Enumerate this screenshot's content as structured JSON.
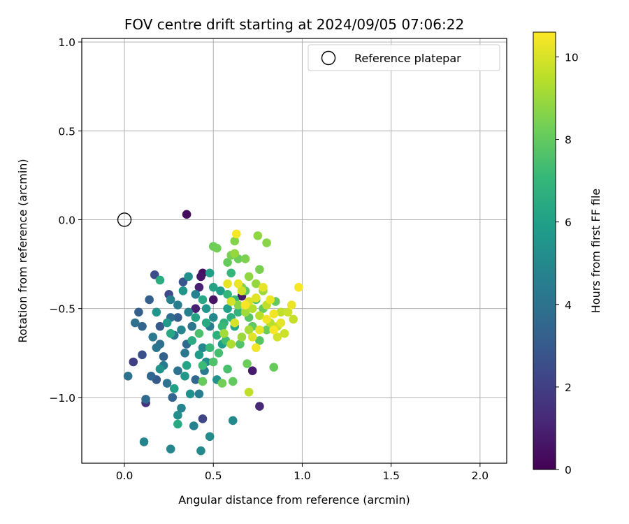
{
  "chart_data": {
    "type": "scatter",
    "title": "FOV centre drift starting at 2024/09/05 07:06:22",
    "xlabel": "Angular distance from reference (arcmin)",
    "ylabel": "Rotation from reference (arcmin)",
    "xlim": [
      -0.24,
      2.15
    ],
    "ylim": [
      -1.37,
      1.02
    ],
    "xticks": [
      0.0,
      0.5,
      1.0,
      1.5,
      2.0
    ],
    "xtick_labels": [
      "0.0",
      "0.5",
      "1.0",
      "1.5",
      "2.0"
    ],
    "yticks": [
      1.0,
      0.5,
      0.0,
      -0.5,
      -1.0
    ],
    "ytick_labels": [
      "1.0",
      "0.5",
      "0.0",
      "−0.5",
      "−1.0"
    ],
    "grid": true,
    "legend": {
      "placement": "top-right",
      "entries": [
        {
          "label": "Reference platepar",
          "marker": "open-circle"
        }
      ]
    },
    "reference_point": {
      "x": 0.0,
      "y": 0.0
    },
    "colorbar": {
      "label": "Hours from first FF file",
      "range": [
        0,
        10.6
      ],
      "ticks": [
        0,
        2,
        4,
        6,
        8,
        10
      ],
      "tick_labels": [
        "0",
        "2",
        "4",
        "6",
        "8",
        "10"
      ],
      "colormap": "viridis"
    },
    "series": [
      {
        "points": [
          [
            0.35,
            0.03,
            0.3
          ],
          [
            0.44,
            -0.3,
            0.4
          ],
          [
            0.43,
            -0.32,
            0.6
          ],
          [
            0.5,
            -0.45,
            0.5
          ],
          [
            0.72,
            -0.85,
            0.8
          ],
          [
            0.76,
            -1.05,
            1.2
          ],
          [
            0.4,
            -0.5,
            0.9
          ],
          [
            0.66,
            -0.43,
            0.7
          ],
          [
            0.42,
            -0.38,
            1.0
          ],
          [
            0.12,
            -1.03,
            1.5
          ],
          [
            0.05,
            -0.8,
            2.0
          ],
          [
            0.17,
            -0.31,
            2.5
          ],
          [
            0.44,
            -1.12,
            2.2
          ],
          [
            0.33,
            -0.35,
            2.8
          ],
          [
            0.25,
            -0.42,
            2.4
          ],
          [
            0.1,
            -0.76,
            2.6
          ],
          [
            0.2,
            -0.6,
            3.0
          ],
          [
            0.14,
            -0.45,
            3.2
          ],
          [
            0.3,
            -0.55,
            3.1
          ],
          [
            0.18,
            -0.9,
            3.0
          ],
          [
            0.27,
            -1.0,
            3.4
          ],
          [
            0.22,
            -0.77,
            3.3
          ],
          [
            0.35,
            -0.7,
            3.6
          ],
          [
            0.4,
            -0.9,
            3.5
          ],
          [
            0.08,
            -0.52,
            3.2
          ],
          [
            0.1,
            -0.6,
            3.4
          ],
          [
            0.15,
            -0.88,
            3.5
          ],
          [
            0.12,
            -1.01,
            3.6
          ],
          [
            0.2,
            -0.7,
            3.8
          ],
          [
            0.26,
            -0.55,
            3.7
          ],
          [
            0.3,
            -0.85,
            4.0
          ],
          [
            0.34,
            -0.75,
            4.2
          ],
          [
            0.38,
            -0.6,
            4.1
          ],
          [
            0.45,
            -0.85,
            4.3
          ],
          [
            0.48,
            -0.6,
            4.4
          ],
          [
            0.24,
            -0.92,
            4.0
          ],
          [
            0.3,
            -0.48,
            4.5
          ],
          [
            0.36,
            -0.52,
            4.6
          ],
          [
            0.28,
            -0.65,
            4.2
          ],
          [
            0.22,
            -0.82,
            4.4
          ],
          [
            0.18,
            -0.72,
            4.1
          ],
          [
            0.42,
            -0.98,
            4.5
          ],
          [
            0.02,
            -0.88,
            4.0
          ],
          [
            0.06,
            -0.58,
            3.9
          ],
          [
            0.16,
            -0.66,
            4.3
          ],
          [
            0.26,
            -0.45,
            4.6
          ],
          [
            0.32,
            -0.62,
            4.8
          ],
          [
            0.4,
            -0.42,
            4.7
          ],
          [
            0.44,
            -0.72,
            4.9
          ],
          [
            0.5,
            -0.55,
            5.0
          ],
          [
            0.11,
            -1.25,
            4.8
          ],
          [
            0.26,
            -1.29,
            4.9
          ],
          [
            0.43,
            -1.3,
            5.0
          ],
          [
            0.48,
            -1.22,
            5.1
          ],
          [
            0.61,
            -1.13,
            5.0
          ],
          [
            0.39,
            -1.16,
            4.7
          ],
          [
            0.32,
            -1.06,
            4.8
          ],
          [
            0.3,
            -1.1,
            5.2
          ],
          [
            0.37,
            -0.98,
            5.3
          ],
          [
            0.46,
            -0.8,
            5.2
          ],
          [
            0.52,
            -0.9,
            5.4
          ],
          [
            0.46,
            -0.5,
            5.5
          ],
          [
            0.36,
            -0.32,
            5.3
          ],
          [
            0.33,
            -0.4,
            5.6
          ],
          [
            0.2,
            -0.84,
            5.4
          ],
          [
            0.18,
            -0.52,
            5.5
          ],
          [
            0.24,
            -0.58,
            5.7
          ],
          [
            0.34,
            -0.88,
            5.6
          ],
          [
            0.42,
            -0.76,
            5.8
          ],
          [
            0.55,
            -0.7,
            5.9
          ],
          [
            0.58,
            -0.5,
            6.0
          ],
          [
            0.54,
            -0.4,
            5.8
          ],
          [
            0.5,
            -0.38,
            6.1
          ],
          [
            0.62,
            -0.6,
            6.2
          ],
          [
            0.48,
            -0.3,
            6.0
          ],
          [
            0.44,
            -0.45,
            6.3
          ],
          [
            0.4,
            -0.55,
            6.1
          ],
          [
            0.3,
            -1.15,
            6.4
          ],
          [
            0.35,
            -0.82,
            6.2
          ],
          [
            0.28,
            -0.95,
            6.0
          ],
          [
            0.38,
            -0.68,
            6.5
          ],
          [
            0.26,
            -0.64,
            6.3
          ],
          [
            0.2,
            -0.34,
            6.6
          ],
          [
            0.46,
            -0.58,
            6.4
          ],
          [
            0.52,
            -0.65,
            6.7
          ],
          [
            0.56,
            -0.58,
            6.8
          ],
          [
            0.6,
            -0.55,
            6.6
          ],
          [
            0.64,
            -0.52,
            6.9
          ],
          [
            0.58,
            -0.42,
            7.0
          ],
          [
            0.55,
            -0.6,
            7.1
          ],
          [
            0.62,
            -0.45,
            7.2
          ],
          [
            0.6,
            -0.3,
            7.0
          ],
          [
            0.57,
            -0.68,
            7.3
          ],
          [
            0.53,
            -0.75,
            7.4
          ],
          [
            0.48,
            -0.72,
            7.1
          ],
          [
            0.44,
            -0.82,
            7.2
          ],
          [
            0.42,
            -0.64,
            7.5
          ],
          [
            0.5,
            -0.8,
            7.6
          ],
          [
            0.58,
            -0.84,
            7.5
          ],
          [
            0.65,
            -0.7,
            7.7
          ],
          [
            0.7,
            -0.55,
            7.8
          ],
          [
            0.74,
            -0.45,
            7.6
          ],
          [
            0.68,
            -0.4,
            7.9
          ],
          [
            0.72,
            -0.6,
            8.0
          ],
          [
            0.76,
            -0.68,
            7.8
          ],
          [
            0.78,
            -0.5,
            8.1
          ],
          [
            0.8,
            -0.62,
            8.2
          ],
          [
            0.85,
            -0.46,
            8.0
          ],
          [
            0.84,
            -0.83,
            8.1
          ],
          [
            0.69,
            -0.81,
            8.2
          ],
          [
            0.55,
            -0.92,
            8.3
          ],
          [
            0.61,
            -0.91,
            8.0
          ],
          [
            0.44,
            -0.91,
            8.1
          ],
          [
            0.5,
            -0.15,
            8.2
          ],
          [
            0.52,
            -0.16,
            8.3
          ],
          [
            0.58,
            -0.24,
            8.1
          ],
          [
            0.6,
            -0.2,
            8.4
          ],
          [
            0.64,
            -0.22,
            8.2
          ],
          [
            0.68,
            -0.22,
            8.5
          ],
          [
            0.62,
            -0.12,
            8.6
          ],
          [
            0.76,
            -0.28,
            8.4
          ],
          [
            0.8,
            -0.13,
            8.7
          ],
          [
            0.75,
            -0.09,
            8.8
          ],
          [
            0.62,
            -0.19,
            8.9
          ],
          [
            0.66,
            -0.38,
            8.6
          ],
          [
            0.7,
            -0.32,
            8.8
          ],
          [
            0.74,
            -0.36,
            8.9
          ],
          [
            0.78,
            -0.4,
            9.0
          ],
          [
            0.64,
            -0.48,
            8.7
          ],
          [
            0.68,
            -0.52,
            9.1
          ],
          [
            0.7,
            -0.62,
            9.2
          ],
          [
            0.66,
            -0.66,
            9.0
          ],
          [
            0.6,
            -0.7,
            9.3
          ],
          [
            0.56,
            -0.64,
            9.1
          ],
          [
            0.72,
            -0.5,
            9.4
          ],
          [
            0.76,
            -0.54,
            9.5
          ],
          [
            0.8,
            -0.48,
            9.6
          ],
          [
            0.82,
            -0.58,
            9.5
          ],
          [
            0.86,
            -0.6,
            9.7
          ],
          [
            0.88,
            -0.52,
            9.6
          ],
          [
            0.92,
            -0.52,
            9.8
          ],
          [
            0.95,
            -0.56,
            9.7
          ],
          [
            0.86,
            -0.66,
            9.9
          ],
          [
            0.9,
            -0.64,
            9.8
          ],
          [
            0.7,
            -0.97,
            9.6
          ],
          [
            0.66,
            -0.4,
            9.9
          ],
          [
            0.7,
            -0.46,
            10.0
          ],
          [
            0.74,
            -0.44,
            10.1
          ],
          [
            0.78,
            -0.38,
            10.2
          ],
          [
            0.82,
            -0.45,
            10.3
          ],
          [
            0.84,
            -0.53,
            10.4
          ],
          [
            0.88,
            -0.58,
            10.2
          ],
          [
            0.94,
            -0.48,
            10.3
          ],
          [
            0.98,
            -0.38,
            10.5
          ],
          [
            0.63,
            -0.08,
            10.5
          ],
          [
            0.72,
            -0.66,
            10.1
          ],
          [
            0.76,
            -0.62,
            10.2
          ],
          [
            0.8,
            -0.56,
            10.4
          ],
          [
            0.64,
            -0.36,
            10.3
          ],
          [
            0.68,
            -0.48,
            10.5
          ],
          [
            0.62,
            -0.58,
            10.0
          ],
          [
            0.6,
            -0.46,
            9.9
          ],
          [
            0.58,
            -0.36,
            10.2
          ],
          [
            0.74,
            -0.72,
            10.4
          ],
          [
            0.84,
            -0.62,
            10.5
          ]
        ]
      }
    ]
  }
}
